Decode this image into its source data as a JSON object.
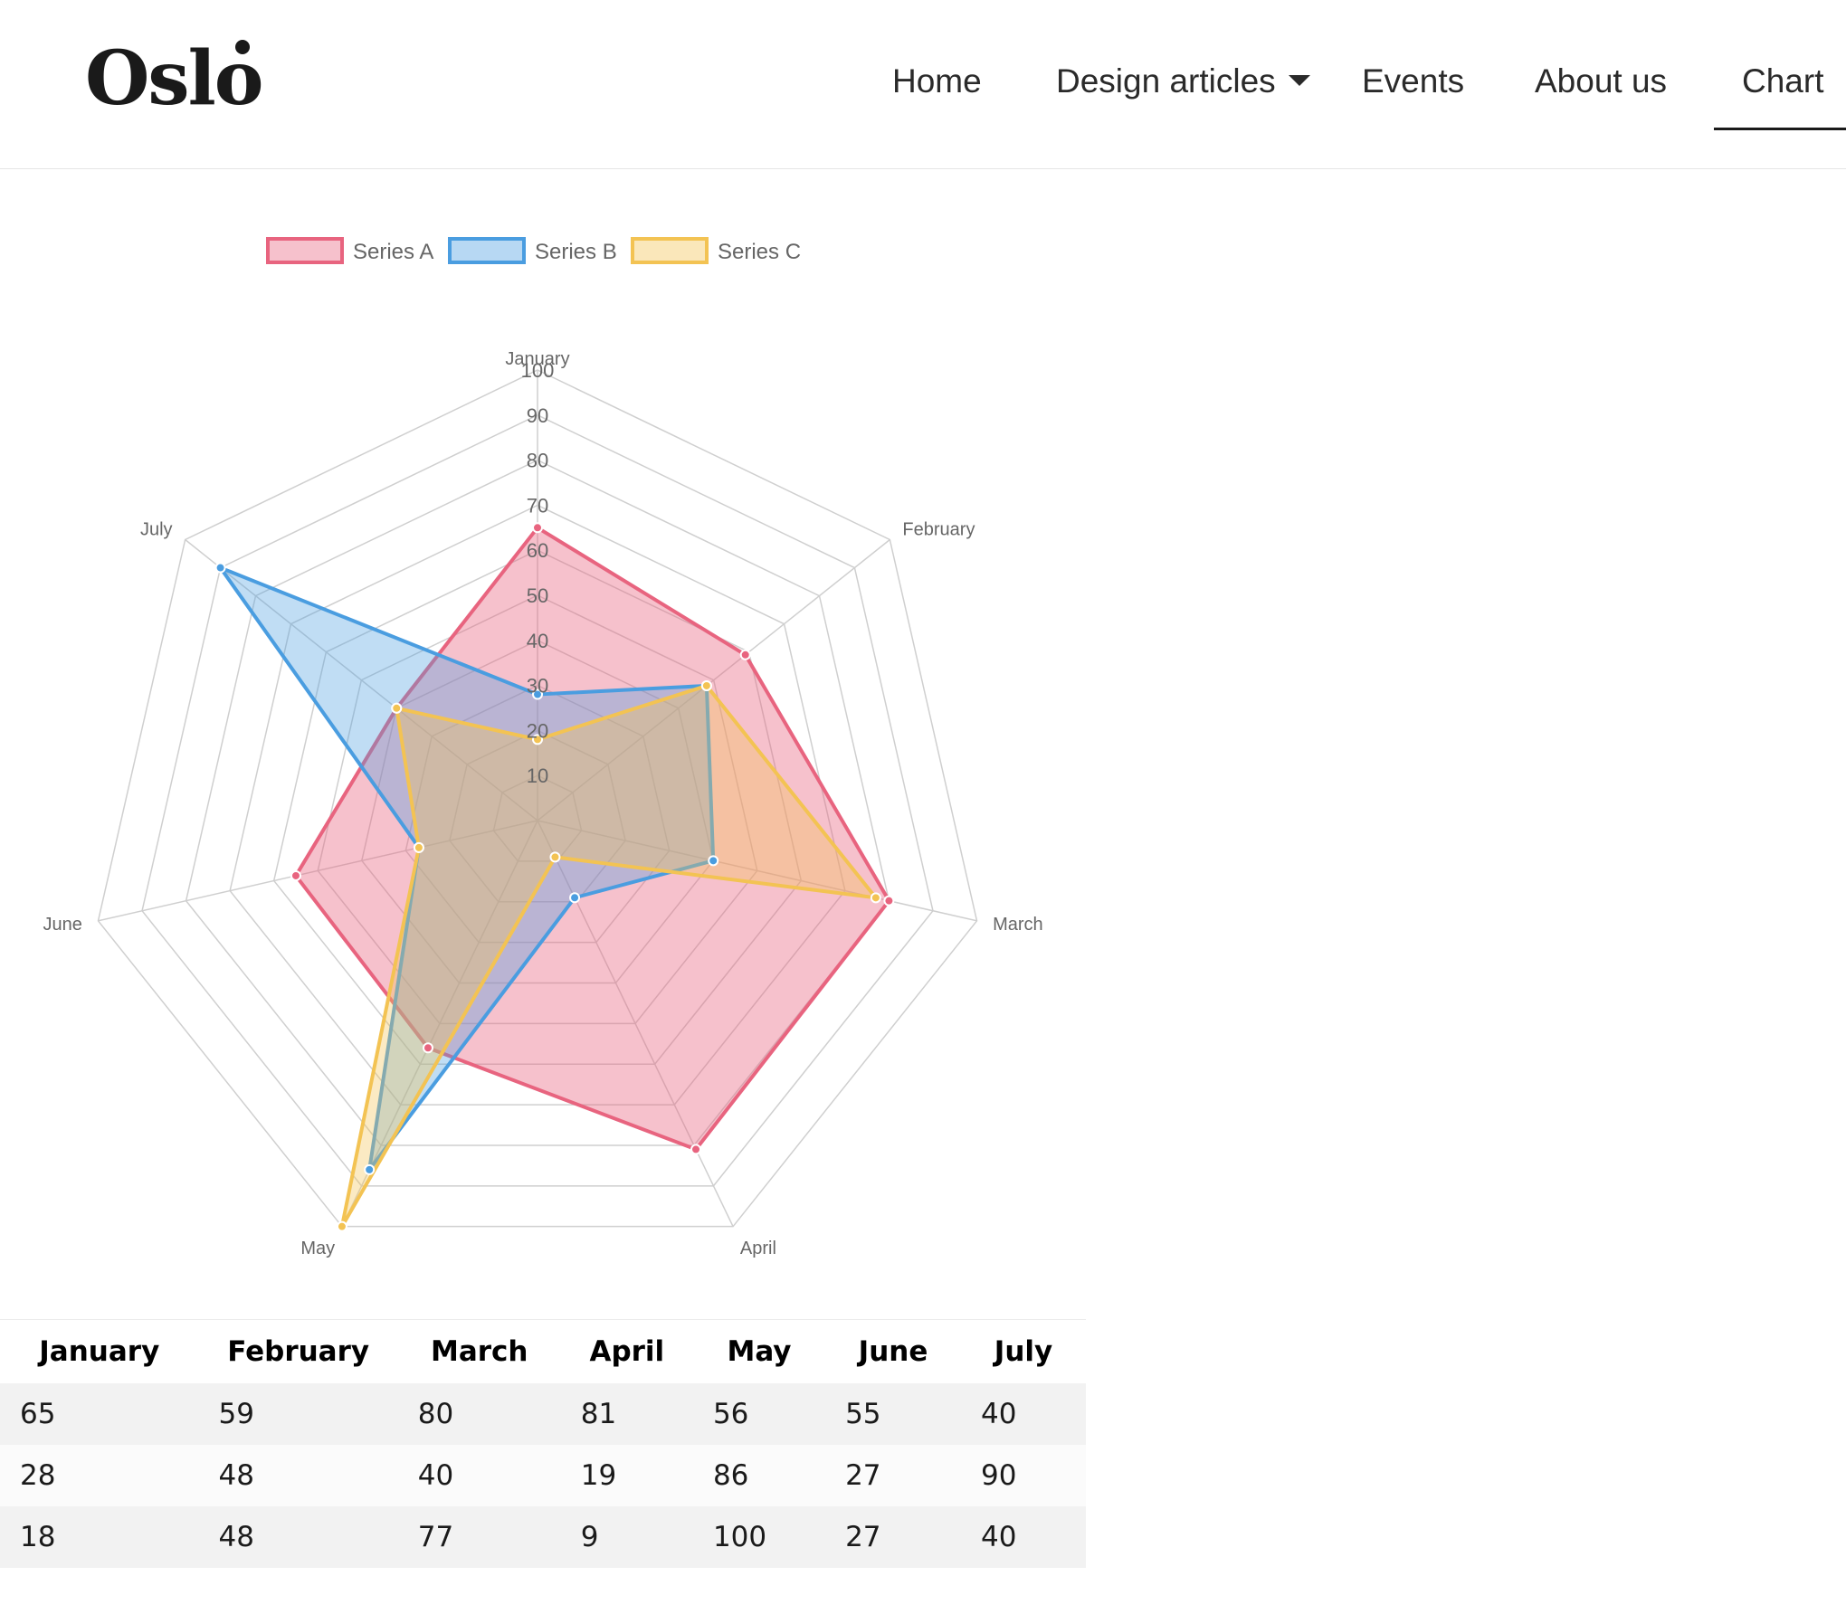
{
  "brand": {
    "name": "Oslo"
  },
  "nav": {
    "items": [
      {
        "label": "Home"
      },
      {
        "label": "Design articles"
      },
      {
        "label": "Events"
      },
      {
        "label": "About us"
      },
      {
        "label": "Chart"
      }
    ],
    "active": "Chart"
  },
  "chart_data": {
    "type": "radar",
    "labels": [
      "January",
      "February",
      "March",
      "April",
      "May",
      "June",
      "July"
    ],
    "r_ticks": [
      10,
      20,
      30,
      40,
      50,
      60,
      70,
      80,
      90,
      100
    ],
    "r_range": [
      0,
      100
    ],
    "grid": true,
    "legend": "top",
    "series": [
      {
        "name": "Series A",
        "values": [
          65,
          59,
          80,
          81,
          56,
          55,
          40
        ],
        "color": "#e8647f"
      },
      {
        "name": "Series B",
        "values": [
          28,
          48,
          40,
          19,
          86,
          27,
          90
        ],
        "color": "#4a9de0"
      },
      {
        "name": "Series C",
        "values": [
          18,
          48,
          77,
          9,
          100,
          27,
          40
        ],
        "color": "#f3c353"
      }
    ]
  },
  "table": {
    "headers": [
      "January",
      "February",
      "March",
      "April",
      "May",
      "June",
      "July"
    ],
    "rows": [
      [
        "65",
        "59",
        "80",
        "81",
        "56",
        "55",
        "40"
      ],
      [
        "28",
        "48",
        "40",
        "19",
        "86",
        "27",
        "90"
      ],
      [
        "18",
        "48",
        "77",
        "9",
        "100",
        "27",
        "40"
      ]
    ]
  }
}
